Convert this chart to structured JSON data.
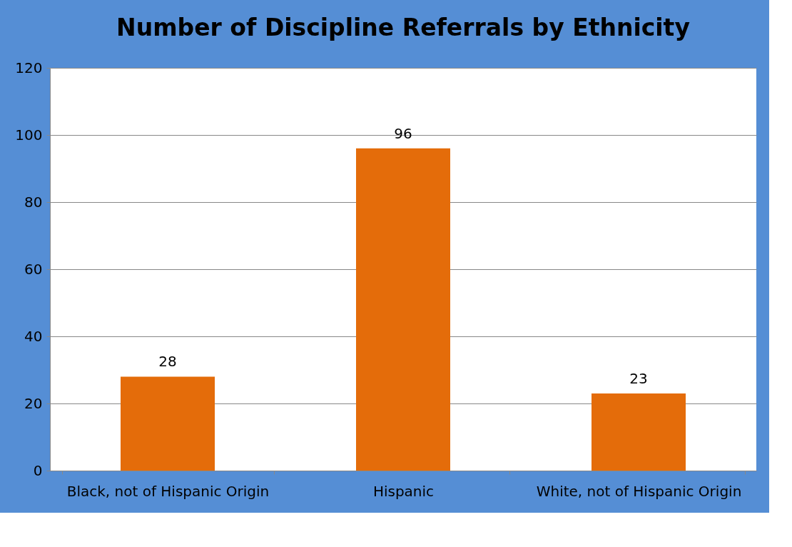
{
  "chart_data": {
    "type": "bar",
    "title": "Number of Discipline Referrals by Ethnicity",
    "categories": [
      "Black, not of Hispanic Origin",
      "Hispanic",
      "White, not of Hispanic Origin"
    ],
    "values": [
      28,
      96,
      23
    ],
    "color": "#e46c0a",
    "ylim": [
      0,
      120
    ],
    "yticks": [
      0,
      20,
      40,
      60,
      80,
      100,
      120
    ],
    "grid": "y",
    "data_labels": true
  }
}
